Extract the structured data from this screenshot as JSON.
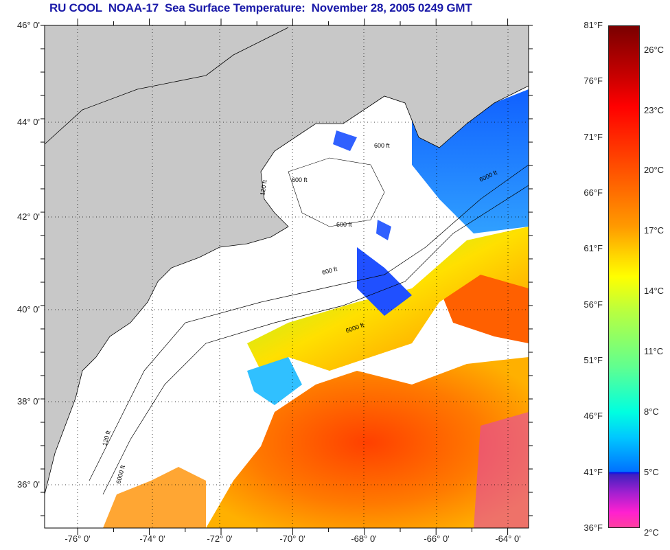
{
  "title": "RU COOL  NOAA-17  Sea Surface Temperature:  November 28, 2005 0249 GMT",
  "map": {
    "lat_labels": [
      "46° 0'",
      "44° 0'",
      "42° 0'",
      "40° 0'",
      "38° 0'",
      "36° 0'"
    ],
    "lon_labels": [
      "-76° 0'",
      "-74° 0'",
      "-72° 0'",
      "-70° 0'",
      "-68° 0'",
      "-66° 0'",
      "-64° 0'"
    ],
    "contour_labels": [
      "600 ft",
      "6000 ft",
      "600 ft",
      "6000 ft",
      "600 ft",
      "600 ft",
      "120 ft",
      "6000 ft",
      "120 ft"
    ],
    "colors": {
      "land": "#c8c8c8",
      "cloud": "#ffffff",
      "cold": "#2040ff",
      "mid": "#ffd000",
      "warm": "#ff5a00"
    }
  },
  "colorbar": {
    "fahrenheit": [
      "81°F",
      "76°F",
      "71°F",
      "66°F",
      "61°F",
      "56°F",
      "51°F",
      "46°F",
      "41°F",
      "36°F"
    ],
    "celsius": [
      "26°C",
      "23°C",
      "20°C",
      "17°C",
      "14°C",
      "11°C",
      "8°C",
      "5°C",
      "2°C"
    ]
  }
}
